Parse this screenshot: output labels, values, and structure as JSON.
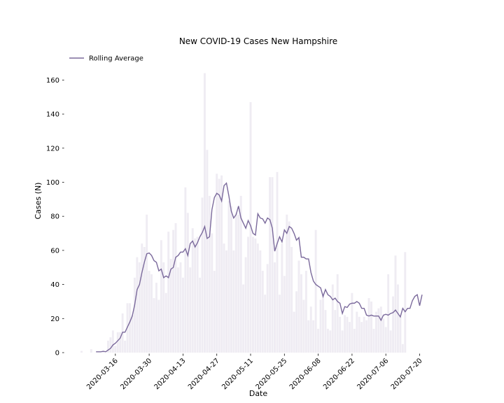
{
  "chart_data": {
    "type": "bar",
    "title": "New COVID-19 Cases New Hampshire",
    "xlabel": "Date",
    "ylabel": "Cases (N)",
    "x_start": "2020-03-02",
    "ylim": [
      0,
      170
    ],
    "yticks": [
      0,
      20,
      40,
      60,
      80,
      100,
      120,
      140,
      160
    ],
    "xticks": [
      "2020-03-16",
      "2020-03-30",
      "2020-04-13",
      "2020-04-27",
      "2020-05-11",
      "2020-05-25",
      "2020-06-08",
      "2020-06-22",
      "2020-07-06",
      "2020-07-20"
    ],
    "grid": false,
    "legend_position": "top-left",
    "bar_color": "#efecf3",
    "line_color": "#7b6a9c",
    "series": [
      {
        "type": "bar",
        "values": [
          1,
          0,
          0,
          0,
          2,
          0,
          0,
          0,
          0,
          1,
          0,
          7,
          9,
          13,
          4,
          12,
          12,
          23,
          7,
          29,
          29,
          22,
          44,
          56,
          53,
          64,
          62,
          81,
          48,
          46,
          32,
          41,
          31,
          66,
          53,
          35,
          71,
          55,
          72,
          76,
          50,
          53,
          44,
          97,
          82,
          50,
          73,
          67,
          68,
          44,
          91,
          164,
          119,
          92,
          70,
          48,
          105,
          102,
          104,
          64,
          60,
          89,
          86,
          60,
          82,
          81,
          92,
          40,
          56,
          68,
          147,
          68,
          67,
          64,
          60,
          48,
          34,
          52,
          103,
          103,
          53,
          106,
          34,
          64,
          45,
          81,
          77,
          62,
          24,
          36,
          54,
          46,
          31,
          48,
          19,
          27,
          19,
          72,
          14,
          31,
          35,
          25,
          14,
          13,
          40,
          25,
          46,
          21,
          13,
          22,
          21,
          18,
          35,
          14,
          24,
          21,
          18,
          21,
          19,
          32,
          30,
          14,
          24,
          26,
          27,
          20,
          15,
          46,
          13,
          33,
          57,
          40,
          21,
          5,
          59
        ]
      },
      {
        "type": "line",
        "name": "Rolling Average",
        "start_index": 6,
        "values": [
          0.5,
          0.5,
          0.5,
          0.8,
          0.5,
          1.5,
          2.5,
          4.5,
          5.5,
          7,
          8.5,
          12,
          12,
          15,
          18,
          21.5,
          28,
          37,
          40,
          47,
          53,
          58,
          58.5,
          57,
          54,
          53,
          48,
          49,
          44,
          45,
          44,
          49,
          50,
          56,
          57,
          59,
          59,
          61,
          57,
          64,
          65.5,
          62,
          64.5,
          68,
          70.5,
          74,
          67,
          68,
          84,
          91,
          93.5,
          92.5,
          89,
          98,
          99.5,
          92,
          83,
          79,
          81,
          86,
          79,
          76,
          73,
          77.5,
          74.5,
          70,
          69,
          81.5,
          79,
          78.5,
          76,
          79,
          78,
          73,
          59.5,
          64,
          68,
          65,
          72,
          70,
          74,
          73,
          70,
          66,
          67.5,
          56,
          56,
          55,
          55,
          47,
          42,
          40,
          39,
          38,
          33,
          37,
          34,
          33,
          31,
          32,
          30,
          29,
          23,
          27,
          26.5,
          28.5,
          29,
          29,
          30,
          29,
          26,
          26,
          22,
          21.5,
          22,
          21.5,
          21.5,
          21.5,
          19,
          22,
          22.5,
          22,
          23,
          23.5,
          25,
          23,
          21,
          26,
          24,
          26,
          26,
          30.5,
          33,
          34,
          27.5,
          34
        ]
      }
    ]
  }
}
